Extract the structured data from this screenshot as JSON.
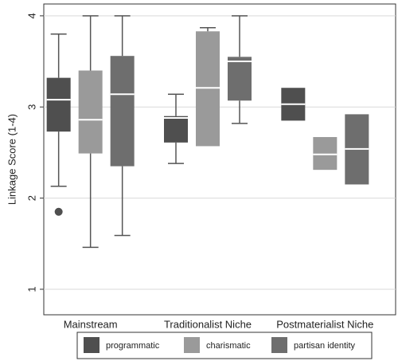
{
  "chart_data": {
    "type": "box",
    "y_label": "Linkage Score (1-4)",
    "categories": [
      "Mainstream",
      "Traditionalist Niche",
      "Postmaterialist Niche"
    ],
    "ylim": [
      0.72,
      4.13
    ],
    "yticks": [
      1,
      2,
      3,
      4
    ],
    "grid": true,
    "median_color": "#ffffff",
    "legend_position": "bottom",
    "series": [
      {
        "name": "programmatic",
        "color": "#4f4f4f",
        "values": [
          {
            "min": 2.13,
            "q1": 2.73,
            "median": 3.08,
            "q3": 3.32,
            "max": 3.8
          },
          {
            "min": 2.38,
            "q1": 2.61,
            "median": 2.88,
            "q3": 2.9,
            "max": 3.14
          },
          {
            "min": 2.85,
            "q1": 2.85,
            "median": 3.03,
            "q3": 3.21,
            "max": 3.21
          }
        ],
        "outliers": [
          [
            1.85
          ],
          [],
          []
        ]
      },
      {
        "name": "charismatic",
        "color": "#9a9a9a",
        "values": [
          {
            "min": 1.46,
            "q1": 2.49,
            "median": 2.86,
            "q3": 3.4,
            "max": 4.0
          },
          {
            "min": 2.57,
            "q1": 2.57,
            "median": 3.21,
            "q3": 3.83,
            "max": 3.87
          },
          {
            "min": 2.31,
            "q1": 2.31,
            "median": 2.48,
            "q3": 2.67,
            "max": 2.67
          }
        ],
        "outliers": [
          [],
          [],
          []
        ]
      },
      {
        "name": "partisan identity",
        "color": "#6e6e6e",
        "values": [
          {
            "min": 1.59,
            "q1": 2.35,
            "median": 3.14,
            "q3": 3.56,
            "max": 4.0
          },
          {
            "min": 2.82,
            "q1": 3.07,
            "median": 3.5,
            "q3": 3.55,
            "max": 4.0
          },
          {
            "min": 2.15,
            "q1": 2.15,
            "median": 2.54,
            "q3": 2.92,
            "max": 2.92
          }
        ],
        "outliers": [
          [],
          [],
          []
        ]
      }
    ]
  }
}
